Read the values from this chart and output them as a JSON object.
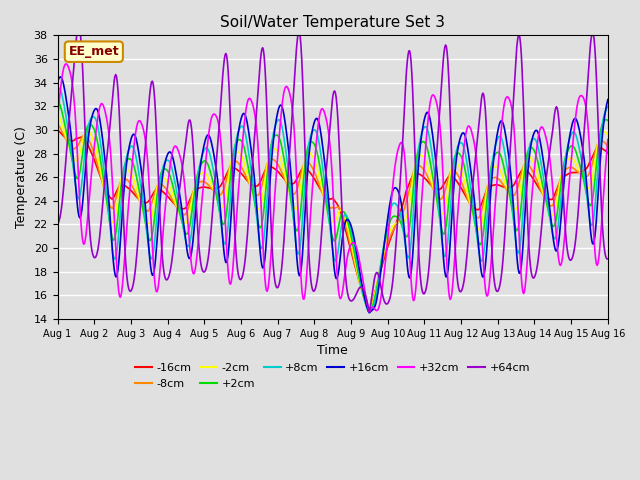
{
  "title": "Soil/Water Temperature Set 3",
  "xlabel": "Time",
  "ylabel": "Temperature (C)",
  "ylim": [
    14,
    38
  ],
  "yticks": [
    14,
    16,
    18,
    20,
    22,
    24,
    26,
    28,
    30,
    32,
    34,
    36,
    38
  ],
  "n_days": 15,
  "n_points": 720,
  "series": [
    {
      "label": "-16cm",
      "color": "#ff0000",
      "amp_ratio": 0.08,
      "mean": 23.2,
      "phase_lag": 0.0,
      "lw": 1.2
    },
    {
      "label": "-8cm",
      "color": "#ff8800",
      "amp_ratio": 0.15,
      "mean": 23.3,
      "phase_lag": 0.05,
      "lw": 1.2
    },
    {
      "label": "-2cm",
      "color": "#ffff00",
      "amp_ratio": 0.25,
      "mean": 23.3,
      "phase_lag": 0.1,
      "lw": 1.2
    },
    {
      "label": "+2cm",
      "color": "#00dd00",
      "amp_ratio": 0.38,
      "mean": 23.3,
      "phase_lag": 0.15,
      "lw": 1.2
    },
    {
      "label": "+8cm",
      "color": "#00cccc",
      "amp_ratio": 0.52,
      "mean": 23.3,
      "phase_lag": 0.2,
      "lw": 1.2
    },
    {
      "label": "+16cm",
      "color": "#0000cc",
      "amp_ratio": 0.65,
      "mean": 23.3,
      "phase_lag": 0.25,
      "lw": 1.2
    },
    {
      "label": "+32cm",
      "color": "#ff00ff",
      "amp_ratio": 0.82,
      "mean": 23.0,
      "phase_lag": 0.4,
      "lw": 1.2
    },
    {
      "label": "+64cm",
      "color": "#9900cc",
      "amp_ratio": 1.0,
      "mean": 23.0,
      "phase_lag": 0.7,
      "lw": 1.2
    }
  ],
  "xtick_labels": [
    "Aug 1",
    "Aug 2",
    "Aug 3",
    "Aug 4",
    "Aug 5",
    "Aug 6",
    "Aug 7",
    "Aug 8",
    "Aug 9",
    "Aug 10",
    "Aug 11",
    "Aug 12",
    "Aug 13",
    "Aug 14",
    "Aug 15",
    "Aug 16"
  ],
  "annotation_text": "EE_met",
  "bg_color": "#e0e0e0",
  "grid_color": "#ffffff",
  "grid_lw": 1.0,
  "day_peaks": [
    38.0,
    33.5,
    33.3,
    29.5,
    35.2,
    35.5,
    37.2,
    33.5,
    14.5,
    35.3,
    36.2,
    31.5,
    37.2,
    30.5,
    37.0
  ],
  "day_troughs": [
    21.5,
    15.8,
    15.8,
    18.0,
    17.0,
    16.5,
    15.5,
    16.0,
    14.5,
    15.5,
    15.5,
    16.0,
    15.5,
    18.5,
    18.5
  ]
}
